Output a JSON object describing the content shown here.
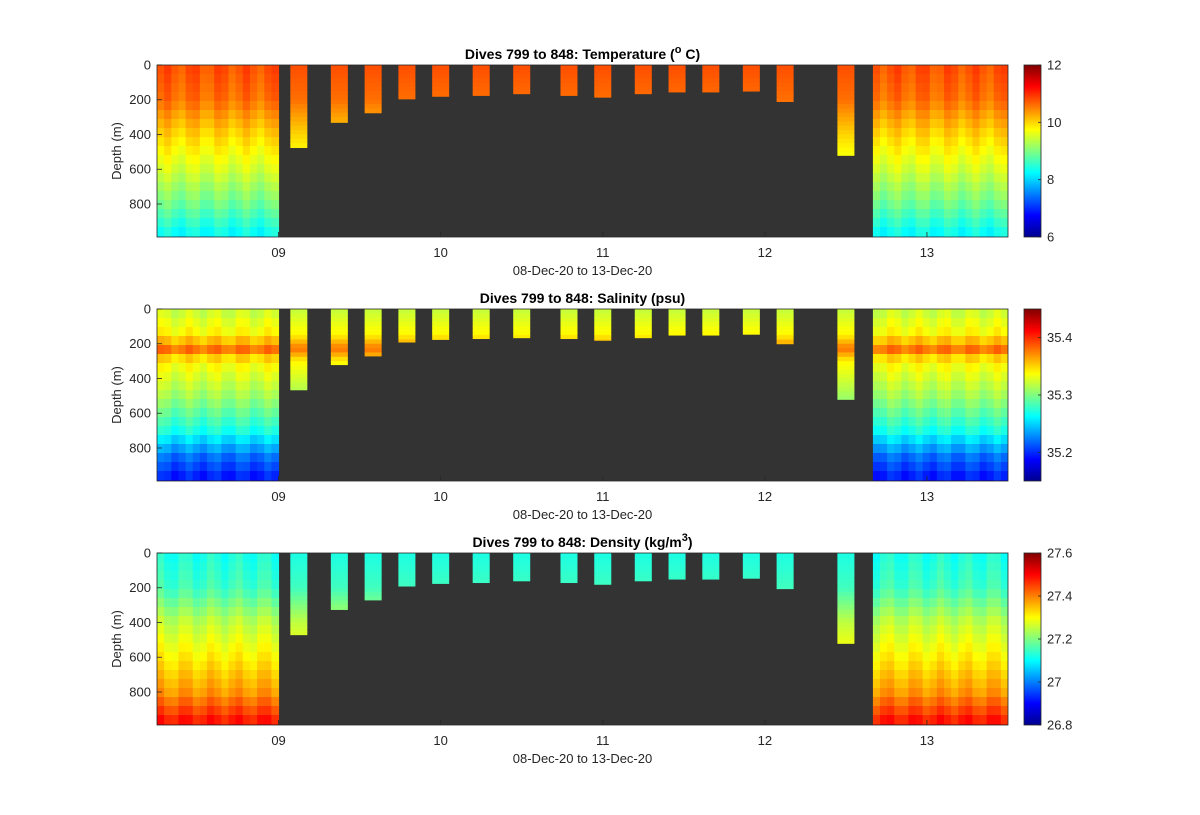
{
  "colormap": [
    "#00008f",
    "#0000ff",
    "#0080ff",
    "#00ffff",
    "#80ff80",
    "#ffff00",
    "#ff8000",
    "#ff0000",
    "#800000"
  ],
  "background_color": "#333333",
  "x_range": [
    "08-Dec-20 06:00",
    "13-Dec-20 12:00"
  ],
  "gap_interval": [
    "09-Dec-20 00:00",
    "12-Dec-20 16:00"
  ],
  "chart_data": [
    {
      "type": "heatmap",
      "title_main": "Dives 799 to 848: Temperature (",
      "title_super": "o",
      "title_tail": " C)",
      "xlabel": "08-Dec-20 to 13-Dec-20",
      "ylabel": "Depth (m)",
      "x_tick_labels": [
        "09",
        "10",
        "11",
        "12",
        "13"
      ],
      "x_tick_dates": [
        "2020-12-09",
        "2020-12-10",
        "2020-12-11",
        "2020-12-12",
        "2020-12-13"
      ],
      "ylim": [
        0,
        990
      ],
      "y_ticks": [
        0,
        200,
        400,
        600,
        800
      ],
      "y_tick_labels": [
        "0",
        "200",
        "400",
        "600",
        "800"
      ],
      "clim": [
        6,
        12
      ],
      "colorbar_ticks": [
        6,
        8,
        10,
        12
      ],
      "colorbar_tick_labels": [
        "6",
        "8",
        "10",
        "12"
      ],
      "profile": {
        "depths": [
          0,
          200,
          400,
          600,
          800,
          990
        ],
        "values": [
          10.8,
          10.6,
          10.0,
          9.5,
          8.9,
          8.2
        ]
      },
      "gap_bars": [
        {
          "time": "2020-12-09 03:00",
          "max_depth": 475
        },
        {
          "time": "2020-12-09 09:00",
          "max_depth": 330
        },
        {
          "time": "2020-12-09 14:00",
          "max_depth": 275
        },
        {
          "time": "2020-12-09 19:00",
          "max_depth": 195
        },
        {
          "time": "2020-12-10 00:00",
          "max_depth": 180
        },
        {
          "time": "2020-12-10 06:00",
          "max_depth": 175
        },
        {
          "time": "2020-12-10 12:00",
          "max_depth": 165
        },
        {
          "time": "2020-12-10 19:00",
          "max_depth": 175
        },
        {
          "time": "2020-12-11 00:00",
          "max_depth": 185
        },
        {
          "time": "2020-12-11 06:00",
          "max_depth": 165
        },
        {
          "time": "2020-12-11 11:00",
          "max_depth": 155
        },
        {
          "time": "2020-12-11 16:00",
          "max_depth": 155
        },
        {
          "time": "2020-12-11 22:00",
          "max_depth": 150
        },
        {
          "time": "2020-12-12 03:00",
          "max_depth": 210
        },
        {
          "time": "2020-12-12 12:00",
          "max_depth": 520
        }
      ]
    },
    {
      "type": "heatmap",
      "title_main": "Dives 799 to 848: Salinity (psu)",
      "title_super": "",
      "title_tail": "",
      "xlabel": "08-Dec-20 to 13-Dec-20",
      "ylabel": "Depth (m)",
      "x_tick_labels": [
        "09",
        "10",
        "11",
        "12",
        "13"
      ],
      "x_tick_dates": [
        "2020-12-09",
        "2020-12-10",
        "2020-12-11",
        "2020-12-12",
        "2020-12-13"
      ],
      "ylim": [
        0,
        990
      ],
      "y_ticks": [
        0,
        200,
        400,
        600,
        800
      ],
      "y_tick_labels": [
        "0",
        "200",
        "400",
        "600",
        "800"
      ],
      "clim": [
        35.15,
        35.45
      ],
      "colorbar_ticks": [
        35.2,
        35.3,
        35.4
      ],
      "colorbar_tick_labels": [
        "35.2",
        "35.3",
        "35.4"
      ],
      "profile": {
        "depths": [
          0,
          150,
          230,
          300,
          500,
          700,
          850,
          990
        ],
        "values": [
          35.32,
          35.34,
          35.38,
          35.34,
          35.31,
          35.27,
          35.22,
          35.19
        ]
      },
      "gap_bars": [
        {
          "time": "2020-12-09 03:00",
          "max_depth": 465
        },
        {
          "time": "2020-12-09 09:00",
          "max_depth": 320
        },
        {
          "time": "2020-12-09 14:00",
          "max_depth": 270
        },
        {
          "time": "2020-12-09 19:00",
          "max_depth": 190
        },
        {
          "time": "2020-12-10 00:00",
          "max_depth": 175
        },
        {
          "time": "2020-12-10 06:00",
          "max_depth": 170
        },
        {
          "time": "2020-12-10 12:00",
          "max_depth": 165
        },
        {
          "time": "2020-12-10 19:00",
          "max_depth": 170
        },
        {
          "time": "2020-12-11 00:00",
          "max_depth": 180
        },
        {
          "time": "2020-12-11 06:00",
          "max_depth": 165
        },
        {
          "time": "2020-12-11 11:00",
          "max_depth": 150
        },
        {
          "time": "2020-12-11 16:00",
          "max_depth": 150
        },
        {
          "time": "2020-12-11 22:00",
          "max_depth": 145
        },
        {
          "time": "2020-12-12 03:00",
          "max_depth": 200
        },
        {
          "time": "2020-12-12 12:00",
          "max_depth": 520
        }
      ]
    },
    {
      "type": "heatmap",
      "title_main": "Dives 799 to 848: Density (kg/m",
      "title_super": "3",
      "title_tail": ")",
      "xlabel": "08-Dec-20 to 13-Dec-20",
      "ylabel": "Depth (m)",
      "x_tick_labels": [
        "09",
        "10",
        "11",
        "12",
        "13"
      ],
      "x_tick_dates": [
        "2020-12-09",
        "2020-12-10",
        "2020-12-11",
        "2020-12-12",
        "2020-12-13"
      ],
      "ylim": [
        0,
        990
      ],
      "y_ticks": [
        0,
        200,
        400,
        600,
        800
      ],
      "y_tick_labels": [
        "0",
        "200",
        "400",
        "600",
        "800"
      ],
      "clim": [
        26.8,
        27.6
      ],
      "colorbar_ticks": [
        26.8,
        27,
        27.2,
        27.4,
        27.6
      ],
      "colorbar_tick_labels": [
        "26.8",
        "27",
        "27.2",
        "27.4",
        "27.6"
      ],
      "profile": {
        "depths": [
          0,
          200,
          400,
          600,
          800,
          990
        ],
        "values": [
          27.12,
          27.15,
          27.25,
          27.31,
          27.38,
          27.5
        ]
      },
      "gap_bars": [
        {
          "time": "2020-12-09 03:00",
          "max_depth": 470
        },
        {
          "time": "2020-12-09 09:00",
          "max_depth": 325
        },
        {
          "time": "2020-12-09 14:00",
          "max_depth": 270
        },
        {
          "time": "2020-12-09 19:00",
          "max_depth": 190
        },
        {
          "time": "2020-12-10 00:00",
          "max_depth": 175
        },
        {
          "time": "2020-12-10 06:00",
          "max_depth": 170
        },
        {
          "time": "2020-12-10 12:00",
          "max_depth": 160
        },
        {
          "time": "2020-12-10 19:00",
          "max_depth": 170
        },
        {
          "time": "2020-12-11 00:00",
          "max_depth": 180
        },
        {
          "time": "2020-12-11 06:00",
          "max_depth": 160
        },
        {
          "time": "2020-12-11 11:00",
          "max_depth": 150
        },
        {
          "time": "2020-12-11 16:00",
          "max_depth": 150
        },
        {
          "time": "2020-12-11 22:00",
          "max_depth": 145
        },
        {
          "time": "2020-12-12 03:00",
          "max_depth": 205
        },
        {
          "time": "2020-12-12 12:00",
          "max_depth": 520
        }
      ]
    }
  ]
}
